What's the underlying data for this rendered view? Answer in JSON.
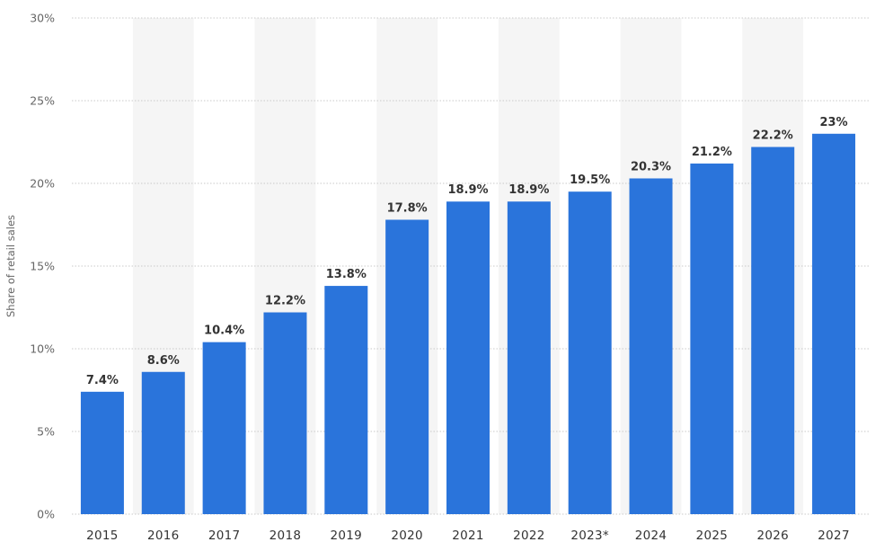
{
  "chart_data": {
    "type": "bar",
    "title": "",
    "xlabel": "",
    "ylabel": "Share of retail sales",
    "categories": [
      "2015",
      "2016",
      "2017",
      "2018",
      "2019",
      "2020",
      "2021",
      "2022",
      "2023*",
      "2024",
      "2025",
      "2026",
      "2027"
    ],
    "values": [
      7.4,
      8.6,
      10.4,
      12.2,
      13.8,
      17.8,
      18.9,
      18.9,
      19.5,
      20.3,
      21.2,
      22.2,
      23
    ],
    "value_labels": [
      "7.4%",
      "8.6%",
      "10.4%",
      "12.2%",
      "13.8%",
      "17.8%",
      "18.9%",
      "18.9%",
      "19.5%",
      "20.3%",
      "21.2%",
      "22.2%",
      "23%"
    ],
    "ylim": [
      0,
      30
    ],
    "yticks": [
      0,
      5,
      10,
      15,
      20,
      25,
      30
    ],
    "ytick_labels": [
      "0%",
      "5%",
      "10%",
      "15%",
      "20%",
      "25%",
      "30%"
    ],
    "grid": true,
    "bar_color": "#2a74db",
    "band_color": "#f5f5f5",
    "legend": "none"
  }
}
